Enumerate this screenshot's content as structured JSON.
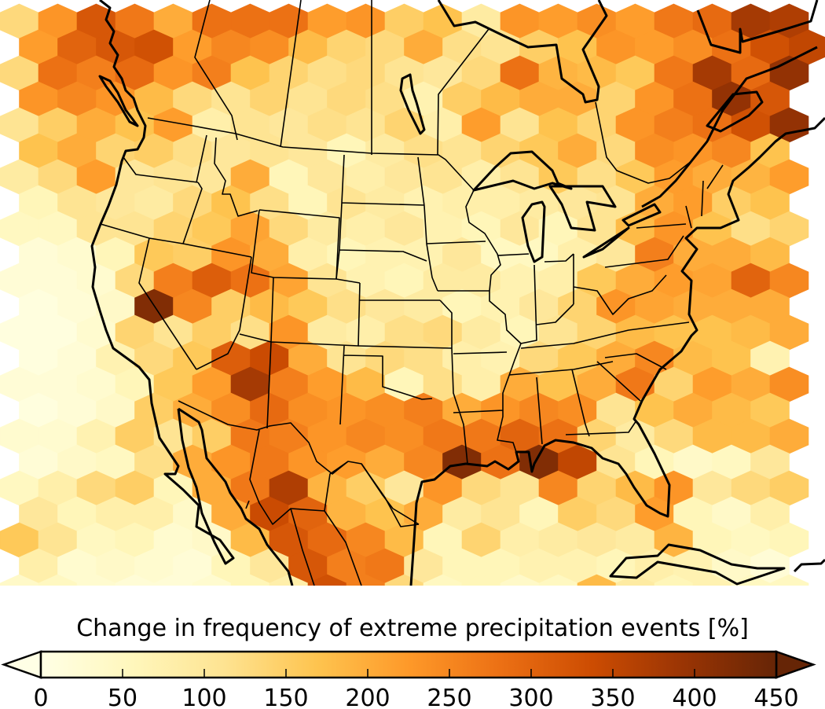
{
  "chart_data": {
    "type": "heatmap",
    "subtype": "hexbin map",
    "region": "North America",
    "colormap": "YlOrBr",
    "color_stops": [
      "#ffffe5",
      "#fff7bc",
      "#fee391",
      "#fec44f",
      "#fe9929",
      "#ec7014",
      "#cc4c02",
      "#993404",
      "#662506"
    ],
    "colorbar": {
      "label": "Change in frequency of extreme precipitation events [%]",
      "range": [
        0,
        450
      ],
      "ticks": [
        "0",
        "50",
        "100",
        "150",
        "200",
        "250",
        "300",
        "350",
        "400",
        "450"
      ],
      "tick_values": [
        0,
        50,
        100,
        150,
        200,
        250,
        300,
        350,
        400,
        450
      ],
      "extend": "both",
      "orientation": "horizontal",
      "placement": "bottom"
    },
    "hex_values_by_row": [
      [
        130,
        230,
        320,
        270,
        200,
        280,
        280,
        280,
        220,
        230,
        150,
        170,
        90,
        230,
        220,
        240,
        220,
        270,
        290,
        380,
        370
      ],
      [
        null,
        220,
        300,
        320,
        330,
        220,
        250,
        240,
        180,
        140,
        130,
        200,
        120,
        110,
        150,
        170,
        230,
        220,
        240,
        280,
        330,
        350
      ],
      [
        130,
        280,
        260,
        290,
        230,
        260,
        170,
        140,
        120,
        130,
        110,
        100,
        130,
        280,
        190,
        180,
        160,
        270,
        380,
        290,
        400
      ],
      [
        null,
        230,
        250,
        230,
        180,
        130,
        110,
        140,
        110,
        130,
        120,
        70,
        150,
        180,
        200,
        200,
        140,
        230,
        280,
        400,
        320,
        null
      ],
      [
        110,
        150,
        200,
        170,
        220,
        80,
        110,
        100,
        120,
        110,
        140,
        80,
        220,
        110,
        170,
        140,
        230,
        260,
        280,
        330,
        400
      ],
      [
        null,
        170,
        200,
        140,
        150,
        120,
        100,
        110,
        100,
        60,
        90,
        120,
        110,
        140,
        160,
        200,
        130,
        240,
        230,
        250,
        170,
        null
      ],
      [
        90,
        130,
        220,
        100,
        110,
        100,
        200,
        60,
        100,
        80,
        100,
        110,
        80,
        110,
        160,
        120,
        160,
        220,
        200,
        190,
        220
      ],
      [
        null,
        60,
        110,
        100,
        90,
        130,
        170,
        120,
        60,
        110,
        90,
        70,
        80,
        80,
        90,
        100,
        110,
        200,
        220,
        150,
        170,
        null
      ],
      [
        50,
        50,
        110,
        110,
        140,
        160,
        210,
        130,
        90,
        80,
        100,
        70,
        60,
        100,
        60,
        110,
        180,
        230,
        170,
        120,
        140
      ],
      [
        null,
        20,
        30,
        60,
        160,
        150,
        230,
        200,
        80,
        60,
        70,
        70,
        100,
        50,
        50,
        80,
        100,
        260,
        200,
        200,
        180,
        null
      ],
      [
        20,
        20,
        30,
        130,
        260,
        310,
        280,
        210,
        110,
        70,
        60,
        90,
        90,
        70,
        80,
        160,
        200,
        220,
        210,
        300,
        250
      ],
      [
        null,
        10,
        20,
        40,
        420,
        250,
        150,
        180,
        160,
        120,
        100,
        90,
        60,
        70,
        100,
        140,
        230,
        210,
        200,
        200,
        200,
        null
      ],
      [
        10,
        10,
        30,
        140,
        110,
        150,
        120,
        230,
        90,
        80,
        120,
        130,
        90,
        60,
        110,
        140,
        180,
        170,
        170,
        180,
        200
      ],
      [
        null,
        10,
        20,
        70,
        130,
        160,
        310,
        340,
        200,
        110,
        130,
        120,
        80,
        70,
        130,
        160,
        200,
        250,
        180,
        170,
        70,
        null
      ],
      [
        20,
        20,
        30,
        60,
        160,
        220,
        380,
        260,
        220,
        180,
        60,
        120,
        80,
        200,
        170,
        200,
        270,
        140,
        220,
        200,
        240
      ],
      [
        null,
        10,
        20,
        40,
        150,
        200,
        240,
        290,
        240,
        230,
        240,
        260,
        200,
        230,
        250,
        240,
        110,
        170,
        200,
        180,
        160,
        null
      ],
      [
        30,
        30,
        70,
        150,
        110,
        150,
        270,
        260,
        230,
        250,
        240,
        270,
        270,
        300,
        280,
        140,
        90,
        130,
        180,
        180,
        200
      ],
      [
        null,
        20,
        40,
        50,
        120,
        200,
        230,
        270,
        230,
        220,
        200,
        250,
        420,
        280,
        420,
        350,
        110,
        60,
        40,
        50,
        100,
        null
      ],
      [
        50,
        80,
        130,
        150,
        60,
        200,
        270,
        370,
        190,
        150,
        100,
        230,
        130,
        110,
        250,
        140,
        180,
        230,
        100,
        130,
        150
      ],
      [
        null,
        100,
        60,
        80,
        80,
        40,
        200,
        340,
        300,
        190,
        170,
        200,
        90,
        110,
        60,
        150,
        130,
        220,
        60,
        40,
        80,
        null
      ],
      [
        160,
        110,
        50,
        60,
        30,
        40,
        180,
        320,
        290,
        250,
        180,
        60,
        140,
        80,
        90,
        100,
        90,
        190,
        60,
        50,
        60
      ],
      [
        null,
        80,
        30,
        40,
        30,
        20,
        60,
        100,
        320,
        260,
        270,
        100,
        60,
        60,
        70,
        70,
        60,
        80,
        70,
        40,
        20,
        null
      ],
      [
        40,
        50,
        30,
        20,
        20,
        30,
        60,
        80,
        330,
        260,
        130,
        50,
        60,
        40,
        50,
        180,
        90,
        60,
        70,
        50,
        50
      ]
    ]
  }
}
